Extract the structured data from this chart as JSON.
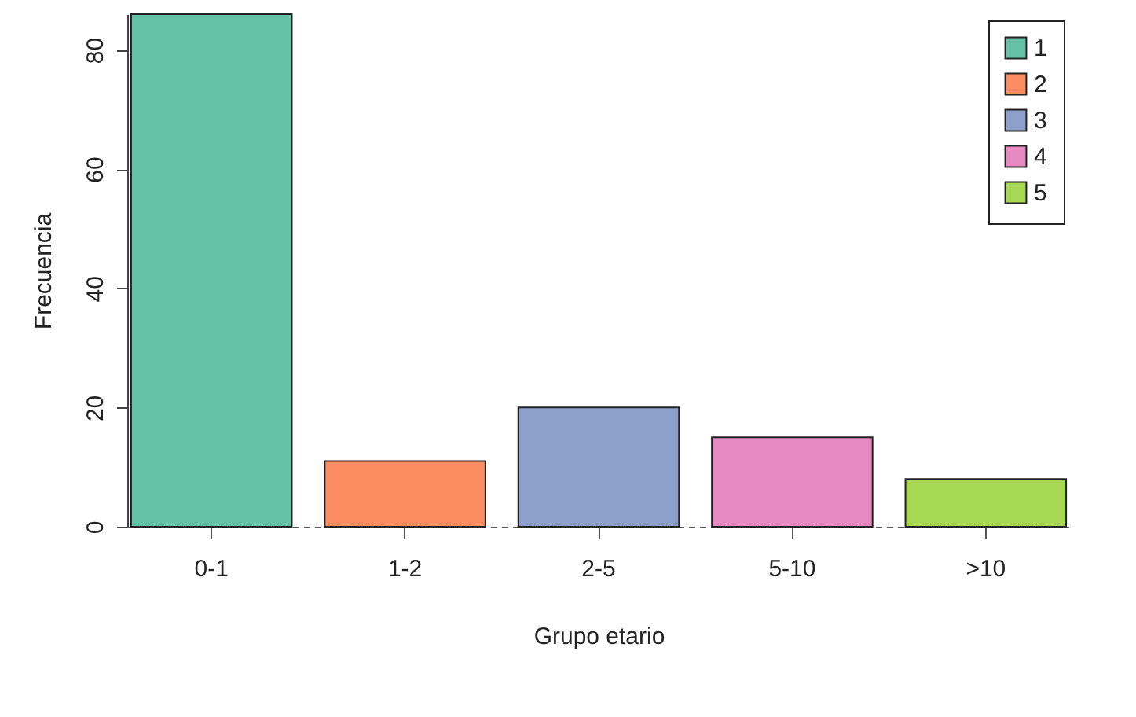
{
  "chart_data": {
    "type": "bar",
    "xlabel": "Grupo etario",
    "ylabel": "Frecuencia",
    "categories": [
      "0-1",
      "1-2",
      "2-5",
      "5-10",
      ">10"
    ],
    "series": [
      {
        "name": "1",
        "color": "#66c2a5",
        "values": [
          86,
          null,
          null,
          null,
          null
        ]
      },
      {
        "name": "2",
        "color": "#fc8d62",
        "values": [
          null,
          11,
          null,
          null,
          null
        ]
      },
      {
        "name": "3",
        "color": "#8da0cb",
        "values": [
          null,
          null,
          20,
          null,
          null
        ]
      },
      {
        "name": "4",
        "color": "#e78ac3",
        "values": [
          null,
          null,
          null,
          15,
          null
        ]
      },
      {
        "name": "5",
        "color": "#a6d854",
        "values": [
          null,
          null,
          null,
          null,
          8
        ]
      }
    ],
    "ylim": [
      0,
      86
    ],
    "yticks": [
      0,
      20,
      40,
      60,
      80
    ],
    "grid": false,
    "legend": "top right"
  }
}
